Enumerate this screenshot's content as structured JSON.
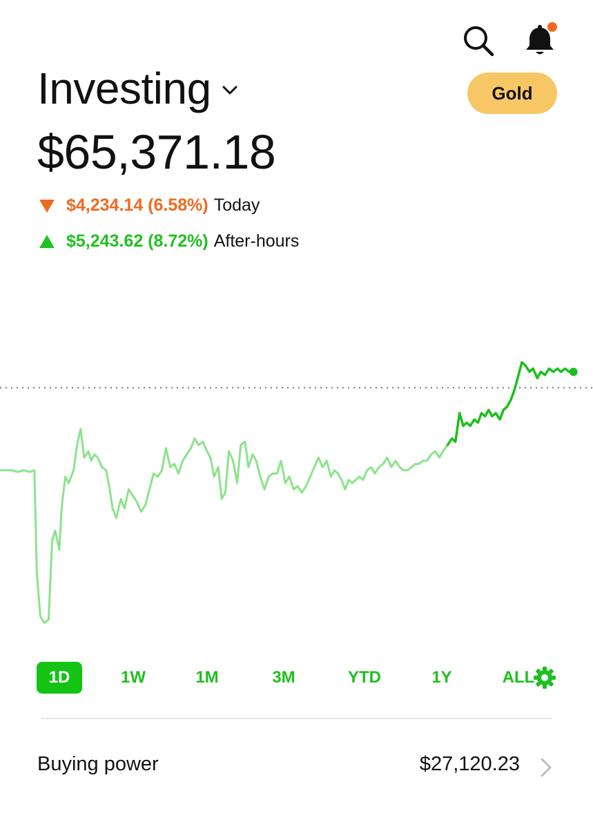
{
  "header": {
    "title": "Investing",
    "gold_label": "Gold",
    "balance": "$65,371.18"
  },
  "changes": {
    "today": {
      "amount": "$4,234.14 (6.58%)",
      "label": "Today",
      "direction": "down",
      "color": "#f06a20"
    },
    "after_hours": {
      "amount": "$5,243.62 (8.72%)",
      "label": "After-hours",
      "direction": "up",
      "color": "#21c021"
    }
  },
  "icons": {
    "search": "search-icon",
    "bell": "bell-icon",
    "notification_dot_color": "#f06a20",
    "title_chevron": "chevron-down-icon",
    "settings": "gear-icon",
    "row_chevron": "chevron-right-icon"
  },
  "range_tabs": [
    {
      "label": "1D",
      "active": true
    },
    {
      "label": "1W",
      "active": false
    },
    {
      "label": "1M",
      "active": false
    },
    {
      "label": "3M",
      "active": false
    },
    {
      "label": "YTD",
      "active": false
    },
    {
      "label": "1Y",
      "active": false
    },
    {
      "label": "ALL",
      "active": false
    }
  ],
  "buying_power": {
    "label": "Buying power",
    "value": "$27,120.23"
  },
  "chart_data": {
    "type": "line",
    "title": "",
    "xlabel": "",
    "ylabel": "",
    "grid": false,
    "colors": {
      "regular": "#8be38b",
      "after_hours": "#1cbf1c",
      "reference_line": "#777777"
    },
    "ylim": [
      0,
      100
    ],
    "reference_value": 78,
    "x_max": 100,
    "after_hours_start_x": 75.5,
    "series": [
      {
        "points": [
          [
            0,
            52
          ],
          [
            2,
            52
          ],
          [
            3,
            51.5
          ],
          [
            4,
            52
          ],
          [
            5,
            51.5
          ],
          [
            5.8,
            52
          ],
          [
            6.2,
            20
          ],
          [
            6.8,
            6
          ],
          [
            7.5,
            4
          ],
          [
            8.2,
            5
          ],
          [
            8.8,
            30
          ],
          [
            9.3,
            33
          ],
          [
            10,
            27
          ],
          [
            10.4,
            40
          ],
          [
            11,
            50
          ],
          [
            11.6,
            48
          ],
          [
            12.4,
            52
          ],
          [
            13,
            60
          ],
          [
            13.6,
            65
          ],
          [
            14.2,
            56
          ],
          [
            14.9,
            58
          ],
          [
            15.4,
            55
          ],
          [
            15.9,
            57
          ],
          [
            16.5,
            56
          ],
          [
            17.2,
            53
          ],
          [
            17.9,
            52
          ],
          [
            18.5,
            46
          ],
          [
            19,
            40
          ],
          [
            19.6,
            37
          ],
          [
            20.4,
            43
          ],
          [
            21,
            40
          ],
          [
            21.7,
            46
          ],
          [
            22.4,
            44
          ],
          [
            23.1,
            42
          ],
          [
            23.8,
            39
          ],
          [
            24.5,
            41
          ],
          [
            25.2,
            46
          ],
          [
            25.9,
            51
          ],
          [
            26.6,
            50
          ],
          [
            27.3,
            52
          ],
          [
            28,
            59
          ],
          [
            28.7,
            53
          ],
          [
            29.4,
            54
          ],
          [
            30.1,
            51
          ],
          [
            30.8,
            55
          ],
          [
            31.5,
            57
          ],
          [
            32.2,
            59
          ],
          [
            32.8,
            62
          ],
          [
            33.5,
            60
          ],
          [
            34.2,
            61
          ],
          [
            34.9,
            58
          ],
          [
            35.5,
            56
          ],
          [
            36.1,
            50
          ],
          [
            36.8,
            53
          ],
          [
            37.4,
            43
          ],
          [
            38,
            45
          ],
          [
            38.6,
            58
          ],
          [
            39.3,
            55
          ],
          [
            40,
            48
          ],
          [
            40.6,
            60
          ],
          [
            41.3,
            61
          ],
          [
            41.9,
            53
          ],
          [
            42.6,
            57
          ],
          [
            43.2,
            55
          ],
          [
            43.9,
            50
          ],
          [
            44.6,
            46
          ],
          [
            45.3,
            50
          ],
          [
            46,
            51
          ],
          [
            46.7,
            51
          ],
          [
            47.4,
            55
          ],
          [
            48.1,
            48
          ],
          [
            48.8,
            50
          ],
          [
            49.5,
            46
          ],
          [
            50.2,
            47
          ],
          [
            50.9,
            45
          ],
          [
            51.6,
            47
          ],
          [
            52.3,
            50
          ],
          [
            53,
            53
          ],
          [
            53.7,
            56
          ],
          [
            54.4,
            53
          ],
          [
            55.1,
            55
          ],
          [
            55.8,
            50
          ],
          [
            56.4,
            52
          ],
          [
            57,
            51
          ],
          [
            57.6,
            49
          ],
          [
            58.2,
            46
          ],
          [
            58.8,
            49
          ],
          [
            59.4,
            48
          ],
          [
            60,
            49
          ],
          [
            60.6,
            50
          ],
          [
            61.2,
            49
          ],
          [
            61.9,
            52
          ],
          [
            62.6,
            53
          ],
          [
            63.2,
            51
          ],
          [
            63.9,
            53
          ],
          [
            64.6,
            54
          ],
          [
            65.3,
            56
          ],
          [
            66,
            53
          ],
          [
            66.7,
            55
          ],
          [
            67.4,
            53
          ],
          [
            68,
            52
          ],
          [
            68.7,
            52
          ],
          [
            69.4,
            53
          ],
          [
            70,
            54
          ],
          [
            70.6,
            54
          ],
          [
            71.3,
            55
          ],
          [
            72,
            55
          ],
          [
            72.7,
            57
          ],
          [
            73.4,
            58
          ],
          [
            74.1,
            56
          ],
          [
            74.7,
            58
          ],
          [
            75.5,
            60
          ]
        ]
      },
      {
        "points": [
          [
            75.5,
            60
          ],
          [
            76.2,
            62
          ],
          [
            76.8,
            61
          ],
          [
            77.5,
            70
          ],
          [
            78.1,
            66
          ],
          [
            78.7,
            67
          ],
          [
            79.3,
            66
          ],
          [
            80,
            68
          ],
          [
            80.6,
            67
          ],
          [
            81.2,
            70
          ],
          [
            81.8,
            69
          ],
          [
            82.4,
            71
          ],
          [
            83,
            69
          ],
          [
            83.6,
            70
          ],
          [
            84.3,
            68
          ],
          [
            84.9,
            71
          ],
          [
            85.5,
            72
          ],
          [
            86.1,
            74
          ],
          [
            86.7,
            77
          ],
          [
            87.3,
            81
          ],
          [
            88,
            86
          ],
          [
            88.6,
            85
          ],
          [
            89.3,
            83
          ],
          [
            89.9,
            84
          ],
          [
            90.6,
            81
          ],
          [
            91.2,
            83
          ],
          [
            91.9,
            82
          ],
          [
            92.6,
            84
          ],
          [
            93.3,
            83
          ],
          [
            94,
            84
          ],
          [
            94.6,
            83
          ],
          [
            95.3,
            84
          ],
          [
            96,
            83
          ],
          [
            96.7,
            83
          ]
        ]
      }
    ],
    "end_marker": [
      96.7,
      83
    ]
  }
}
